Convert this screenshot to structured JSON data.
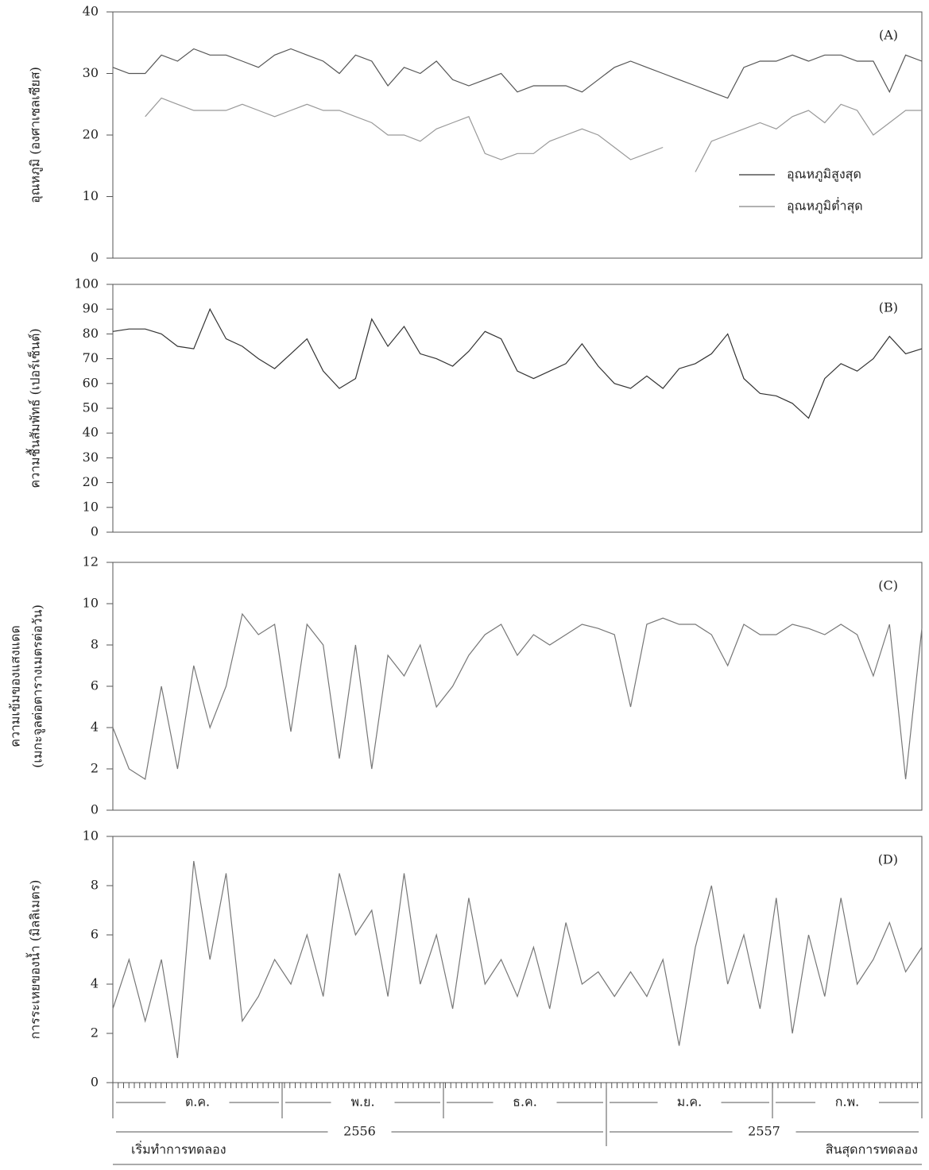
{
  "chart_data": [
    {
      "type": "line",
      "panel_label": "(A)",
      "y_label": "อุณหภูมิ (องศาเซลเซียส)",
      "ylim": [
        0,
        40
      ],
      "yticks": [
        0,
        10,
        20,
        30,
        40
      ],
      "legend": true,
      "series": [
        {
          "name": "อุณหภูมิสูงสุด",
          "color": "#555555",
          "values": [
            31,
            30,
            30,
            33,
            32,
            34,
            33,
            33,
            32,
            31,
            33,
            34,
            33,
            32,
            30,
            33,
            32,
            28,
            31,
            30,
            32,
            29,
            28,
            29,
            30,
            27,
            28,
            28,
            28,
            27,
            29,
            31,
            32,
            31,
            30,
            29,
            28,
            27,
            26,
            31,
            32,
            32,
            33,
            32,
            33,
            33,
            32,
            32,
            27,
            33,
            32
          ]
        },
        {
          "name": "อุณหภูมิต่ำสุด",
          "color": "#999999",
          "values": [
            null,
            null,
            23,
            26,
            25,
            24,
            24,
            24,
            25,
            24,
            23,
            24,
            25,
            24,
            24,
            23,
            22,
            20,
            20,
            19,
            21,
            22,
            23,
            17,
            16,
            17,
            17,
            19,
            20,
            21,
            20,
            18,
            16,
            17,
            18,
            null,
            14,
            19,
            20,
            21,
            22,
            21,
            23,
            24,
            22,
            25,
            24,
            20,
            22,
            24,
            24
          ]
        }
      ]
    },
    {
      "type": "line",
      "panel_label": "(B)",
      "y_label": "ความชื้นสัมพัทธ์ (เปอร์เซ็นต์)",
      "ylim": [
        0,
        100
      ],
      "yticks": [
        0,
        10,
        20,
        30,
        40,
        50,
        60,
        70,
        80,
        90,
        100
      ],
      "color": "#333333",
      "values": [
        81,
        82,
        82,
        80,
        75,
        74,
        90,
        78,
        75,
        70,
        66,
        72,
        78,
        65,
        58,
        62,
        86,
        75,
        83,
        72,
        70,
        67,
        73,
        81,
        78,
        65,
        62,
        65,
        68,
        76,
        67,
        60,
        58,
        63,
        58,
        66,
        68,
        72,
        80,
        62,
        56,
        55,
        52,
        46,
        62,
        68,
        65,
        70,
        79,
        72,
        74
      ]
    },
    {
      "type": "line",
      "panel_label": "(C)",
      "y_label": [
        "ความเข้มของแสงแดด",
        "(เมกะจูลต่อตารางเมตรต่อวัน)"
      ],
      "ylim": [
        0,
        12
      ],
      "yticks": [
        0,
        2,
        4,
        6,
        8,
        10,
        12
      ],
      "color": "#777777",
      "values": [
        4,
        2,
        1.5,
        6,
        2,
        7,
        4,
        6,
        9.5,
        8.5,
        9,
        3.8,
        9,
        8,
        2.5,
        8,
        2,
        7.5,
        6.5,
        8,
        5,
        6,
        7.5,
        8.5,
        9,
        7.5,
        8.5,
        8,
        8.5,
        9,
        8.8,
        8.5,
        5,
        9,
        9.3,
        9,
        9,
        8.5,
        7,
        9,
        8.5,
        8.5,
        9,
        8.8,
        8.5,
        9,
        8.5,
        6.5,
        9,
        1.5,
        8.8
      ]
    },
    {
      "type": "line",
      "panel_label": "(D)",
      "y_label": "การระเหยของน้ำ (มิลลิเมตร)",
      "ylim": [
        0,
        10
      ],
      "yticks": [
        0,
        2,
        4,
        6,
        8,
        10
      ],
      "color": "#777777",
      "values": [
        3,
        5,
        2.5,
        5,
        1,
        9,
        5,
        8.5,
        2.5,
        3.5,
        5,
        4,
        6,
        3.5,
        8.5,
        6,
        7,
        3.5,
        8.5,
        4,
        6,
        3,
        7.5,
        4,
        5,
        3.5,
        5.5,
        3,
        6.5,
        4,
        4.5,
        3.5,
        4.5,
        3.5,
        5,
        1.5,
        5.5,
        8,
        4,
        6,
        3,
        7.5,
        2,
        6,
        3.5,
        7.5,
        4,
        5,
        6.5,
        4.5,
        5.5
      ]
    }
  ],
  "time_axis": {
    "months": [
      "ต.ค.",
      "พ.ย.",
      "ธ.ค.",
      "ม.ค.",
      "ก.พ."
    ],
    "years": [
      "2556",
      "2557"
    ],
    "start_label": "เริ่มทำการทดลอง",
    "end_label": "สินสุดการทดลอง"
  }
}
